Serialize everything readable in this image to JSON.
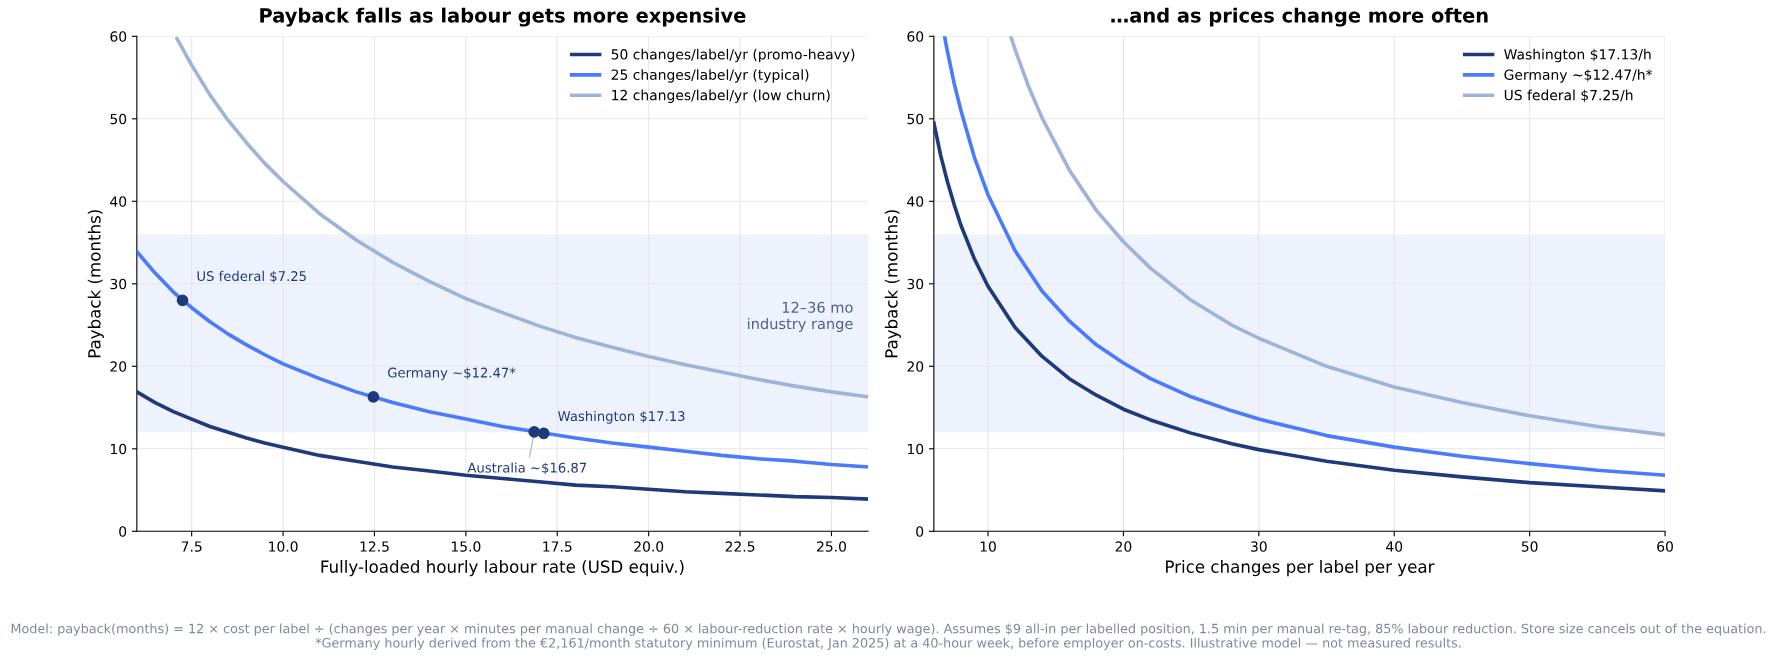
{
  "chart_data": [
    {
      "type": "line",
      "title": "Payback falls as labour gets more expensive",
      "xlabel": "Fully-loaded hourly labour rate (USD equiv.)",
      "ylabel": "Payback (months)",
      "xlim": [
        6,
        26
      ],
      "xticks": [
        {
          "value": 7.5,
          "label": "7.5"
        },
        {
          "value": 10,
          "label": "10.0"
        },
        {
          "value": 12.5,
          "label": "12.5"
        },
        {
          "value": 15,
          "label": "15.0"
        },
        {
          "value": 17.5,
          "label": "17.5"
        },
        {
          "value": 20,
          "label": "20.0"
        },
        {
          "value": 22.5,
          "label": "22.5"
        },
        {
          "value": 25,
          "label": "25.0"
        }
      ],
      "ylim": [
        0,
        60
      ],
      "yticks": [
        0,
        10,
        20,
        30,
        40,
        50,
        60
      ],
      "grid": true,
      "legend": "top right",
      "bands": [
        {
          "axis": "y",
          "from": 12,
          "to": 36,
          "label": "12–36 mo\nindustry range",
          "color": "#eef2fd"
        }
      ],
      "series": [
        {
          "name": "50 changes/label/yr (promo-heavy)",
          "color": "#1f3a7a",
          "x": [
            6,
            6.5,
            7,
            7.5,
            8,
            8.5,
            9,
            9.5,
            10,
            11,
            12,
            13,
            14,
            15,
            16,
            17,
            18,
            19,
            20,
            21,
            22,
            23,
            24,
            25,
            26
          ],
          "values": [
            16.9,
            15.6,
            14.5,
            13.6,
            12.7,
            12.0,
            11.3,
            10.7,
            10.2,
            9.2,
            8.5,
            7.8,
            7.3,
            6.8,
            6.4,
            6.0,
            5.6,
            5.4,
            5.1,
            4.8,
            4.6,
            4.4,
            4.2,
            4.1,
            3.9
          ]
        },
        {
          "name": "25 changes/label/yr (typical)",
          "color": "#4a7bff",
          "x": [
            6,
            6.5,
            7,
            7.5,
            8,
            8.5,
            9,
            9.5,
            10,
            11,
            12,
            13,
            14,
            15,
            16,
            17,
            18,
            19,
            20,
            21,
            22,
            23,
            24,
            25,
            26
          ],
          "values": [
            33.9,
            31.3,
            29.0,
            27.1,
            25.4,
            23.9,
            22.6,
            21.4,
            20.3,
            18.5,
            16.9,
            15.6,
            14.5,
            13.6,
            12.7,
            12.0,
            11.3,
            10.7,
            10.2,
            9.7,
            9.2,
            8.8,
            8.5,
            8.1,
            7.8
          ]
        },
        {
          "name": "12 changes/label/yr (low churn)",
          "color": "#9fb3d9",
          "x": [
            7.1,
            7.5,
            8,
            8.5,
            9,
            9.5,
            10,
            11,
            12,
            13,
            14,
            15,
            16,
            17,
            18,
            19,
            20,
            21,
            22,
            23,
            24,
            25,
            26
          ],
          "values": [
            59.7,
            56.5,
            52.9,
            49.8,
            47.1,
            44.6,
            42.4,
            38.5,
            35.3,
            32.6,
            30.3,
            28.2,
            26.5,
            24.9,
            23.5,
            22.3,
            21.2,
            20.2,
            19.3,
            18.4,
            17.6,
            16.9,
            16.3
          ]
        },
        {
          "type": "scatter",
          "marker": "circle",
          "color": "#1f3a7a",
          "x": [
            7.25,
            12.47,
            16.87,
            17.13
          ],
          "values": [
            28.0,
            16.3,
            12.05,
            11.87
          ]
        }
      ],
      "annotations": [
        {
          "text": "US federal $7.25",
          "x": 7.25,
          "y": 28.0
        },
        {
          "text": "Germany ~$12.47*",
          "x": 12.47,
          "y": 16.3
        },
        {
          "text": "Washington $17.13",
          "x": 17.13,
          "y": 11.87
        },
        {
          "text": "Australia ~$16.87",
          "x": 16.87,
          "y": 12.05
        },
        "Model: payback(months) = 12 × cost per label ÷ (changes per year × minutes per manual change ÷ 60 × labour-reduction rate × hourly wage). Assumes $9 all-in per labelled position, 1.5 min per manual re-tag, 85% labour reduction. Store size cancels out of the equation.\n*Germany hourly derived from the €2,161/month statutory minimum (Eurostat, Jan 2025) at a 40-hour week, before employer on-costs. Illustrative model — not measured results."
      ]
    },
    {
      "type": "line",
      "title": "…and as prices change more often",
      "xlabel": "Price changes per label per year",
      "ylabel": "Payback (months)",
      "xlim": [
        6,
        60
      ],
      "xticks": [
        10,
        20,
        30,
        40,
        50,
        60
      ],
      "ylim": [
        0,
        60
      ],
      "yticks": [
        0,
        10,
        20,
        30,
        40,
        50,
        60
      ],
      "grid": true,
      "legend": "top right",
      "bands": [
        {
          "axis": "y",
          "from": 12,
          "to": 36,
          "color": "#eef2fd"
        }
      ],
      "series": [
        {
          "name": "Washington $17.13/h",
          "color": "#1f3a7a",
          "x": [
            6,
            6.5,
            7,
            7.5,
            8,
            9,
            10,
            12,
            14,
            16,
            18,
            20,
            22,
            25,
            28,
            30,
            35,
            40,
            45,
            50,
            55,
            60
          ],
          "values": [
            49.5,
            45.6,
            42.4,
            39.6,
            37.1,
            33.0,
            29.7,
            24.7,
            21.2,
            18.5,
            16.5,
            14.8,
            13.5,
            11.9,
            10.6,
            9.9,
            8.5,
            7.4,
            6.6,
            5.9,
            5.4,
            4.9
          ]
        },
        {
          "name": "Germany ~$12.47/h*",
          "color": "#4a7bff",
          "x": [
            6.8,
            7,
            7.5,
            8,
            9,
            10,
            12,
            14,
            16,
            18,
            20,
            22,
            25,
            28,
            30,
            35,
            40,
            45,
            50,
            55,
            60
          ],
          "values": [
            59.9,
            58.2,
            54.3,
            51.0,
            45.3,
            40.8,
            34.0,
            29.1,
            25.5,
            22.6,
            20.4,
            18.5,
            16.3,
            14.6,
            13.6,
            11.6,
            10.2,
            9.1,
            8.2,
            7.4,
            6.8
          ]
        },
        {
          "name": "US federal $7.25/h",
          "color": "#9fb3d9",
          "x": [
            11.7,
            12,
            13,
            14,
            16,
            18,
            20,
            22,
            25,
            28,
            30,
            35,
            40,
            45,
            50,
            55,
            60
          ],
          "values": [
            59.9,
            58.4,
            53.9,
            50.1,
            43.8,
            38.9,
            35.1,
            31.9,
            28.0,
            25.0,
            23.4,
            20.0,
            17.5,
            15.6,
            14.0,
            12.7,
            11.7
          ]
        }
      ]
    }
  ]
}
